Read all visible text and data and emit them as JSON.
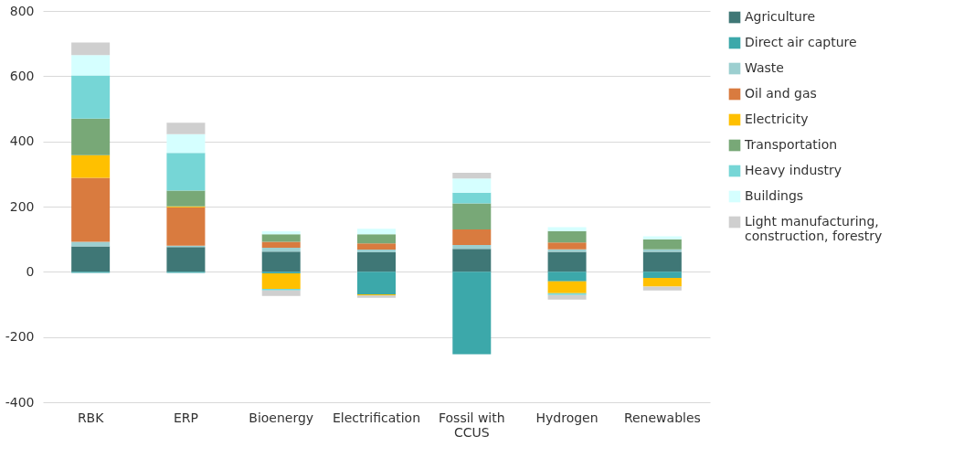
{
  "chart_data": {
    "type": "bar",
    "stacked": true,
    "categories": [
      "RBK",
      "ERP",
      "Bioenergy",
      "Electrification",
      "Fossil with CCUS",
      "Hydrogen",
      "Renewables"
    ],
    "series": [
      {
        "name": "Agriculture",
        "color": "#3f7776",
        "values": [
          78,
          76,
          62,
          60,
          70,
          61,
          61
        ]
      },
      {
        "name": "Direct air capture",
        "color": "#3ca8aa",
        "values": [
          -3,
          -3,
          -5,
          -69,
          -253,
          -29,
          -19
        ]
      },
      {
        "name": "Waste",
        "color": "#9ccfd0",
        "values": [
          14,
          4,
          12,
          8,
          12,
          8,
          8
        ]
      },
      {
        "name": "Oil and gas",
        "color": "#d97b3f",
        "values": [
          196,
          118,
          18,
          19,
          48,
          21,
          null
        ]
      },
      {
        "name": "Electricity",
        "color": "#ffc000",
        "values": [
          70,
          3,
          -47,
          -3,
          null,
          -37,
          -26
        ]
      },
      {
        "name": "Transportation",
        "color": "#78a877",
        "values": [
          112,
          48,
          23,
          28,
          80,
          35,
          31
        ]
      },
      {
        "name": "Heavy industry",
        "color": "#76d6d6",
        "values": [
          132,
          116,
          -5,
          null,
          33,
          -5,
          null
        ]
      },
      {
        "name": "Buildings",
        "color": "#d5ffff",
        "values": [
          63,
          57,
          9,
          17,
          43,
          12,
          9
        ]
      },
      {
        "name": "Light manufacturing, construction, forestry",
        "color": "#cfcfcf",
        "values": [
          38,
          35,
          -17,
          -8,
          18,
          -14,
          -12
        ]
      }
    ],
    "ylim": [
      -400,
      800
    ],
    "yticks": [
      -400,
      -200,
      0,
      200,
      400,
      600,
      800
    ],
    "grid": "y",
    "legend": "top right"
  }
}
